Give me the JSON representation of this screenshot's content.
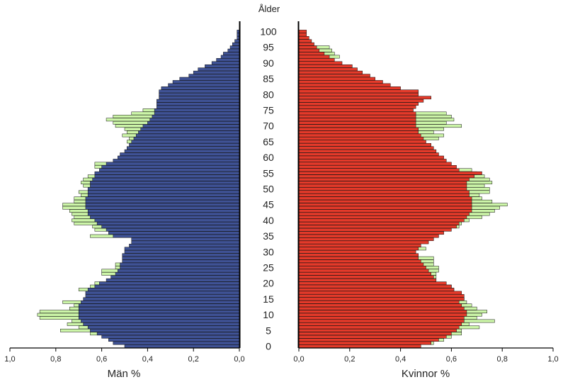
{
  "chart_data": {
    "type": "bar",
    "orientation": "horizontal",
    "subtype": "population-pyramid",
    "age_title": "Ålder",
    "age_range": [
      0,
      100
    ],
    "age_ticks": [
      0,
      5,
      10,
      15,
      20,
      25,
      30,
      35,
      40,
      45,
      50,
      55,
      60,
      65,
      70,
      75,
      80,
      85,
      90,
      95,
      100
    ],
    "xlim": [
      0,
      1.0
    ],
    "x_ticks": [
      0,
      0.2,
      0.4,
      0.6,
      0.8,
      1.0
    ],
    "x_tick_labels": [
      "0,0",
      "0,2",
      "0,4",
      "0,6",
      "0,8",
      "1,0"
    ],
    "men": {
      "xlabel": "Män %",
      "color": "#3f5295",
      "highlight_color": "#ccf5a8",
      "main": [
        0.5,
        0.55,
        0.57,
        0.6,
        0.62,
        0.65,
        0.66,
        0.68,
        0.69,
        0.7,
        0.7,
        0.7,
        0.7,
        0.7,
        0.69,
        0.68,
        0.67,
        0.67,
        0.66,
        0.63,
        0.61,
        0.58,
        0.56,
        0.54,
        0.53,
        0.52,
        0.52,
        0.51,
        0.51,
        0.51,
        0.5,
        0.5,
        0.48,
        0.47,
        0.47,
        0.55,
        0.57,
        0.58,
        0.6,
        0.62,
        0.63,
        0.65,
        0.66,
        0.66,
        0.67,
        0.67,
        0.67,
        0.67,
        0.66,
        0.66,
        0.66,
        0.65,
        0.65,
        0.64,
        0.63,
        0.63,
        0.61,
        0.6,
        0.58,
        0.55,
        0.53,
        0.52,
        0.5,
        0.49,
        0.48,
        0.47,
        0.46,
        0.45,
        0.44,
        0.43,
        0.42,
        0.4,
        0.39,
        0.38,
        0.37,
        0.37,
        0.36,
        0.36,
        0.36,
        0.35,
        0.35,
        0.35,
        0.34,
        0.31,
        0.29,
        0.26,
        0.22,
        0.2,
        0.18,
        0.15,
        0.12,
        0.1,
        0.08,
        0.07,
        0.05,
        0.04,
        0.03,
        0.02,
        0.01,
        0.01,
        0.01
      ],
      "extra": [
        0.0,
        0.0,
        0.0,
        0.0,
        0.03,
        0.13,
        0.04,
        0.07,
        0.04,
        0.17,
        0.18,
        0.17,
        0.04,
        0.02,
        0.08,
        0.0,
        0.0,
        0.0,
        0.04,
        0.02,
        0.02,
        0.0,
        0.0,
        0.06,
        0.07,
        0.02,
        0.02,
        0.0,
        0.0,
        0.0,
        0.0,
        0.0,
        0.0,
        0.0,
        0.0,
        0.1,
        0.0,
        0.05,
        0.04,
        0.1,
        0.1,
        0.07,
        0.07,
        0.08,
        0.1,
        0.1,
        0.05,
        0.05,
        0.03,
        0.04,
        0.0,
        0.03,
        0.04,
        0.04,
        0.03,
        0.0,
        0.0,
        0.03,
        0.05,
        0.0,
        0.0,
        0.0,
        0.0,
        0.0,
        0.0,
        0.02,
        0.02,
        0.06,
        0.05,
        0.07,
        0.12,
        0.15,
        0.19,
        0.17,
        0.1,
        0.05,
        0.0,
        0.0,
        0.0,
        0.0,
        0.0,
        0.0,
        0.0,
        0.0,
        0.0,
        0.0,
        0.0,
        0.0,
        0.0,
        0.0,
        0.0,
        0.0,
        0.0,
        0.0,
        0.0,
        0.0,
        0.0,
        0.0,
        0.0,
        0.0,
        0.0
      ]
    },
    "women": {
      "xlabel": "Kvinnor %",
      "color": "#e43a2a",
      "highlight_color": "#ccf5a8",
      "main": [
        0.48,
        0.52,
        0.55,
        0.58,
        0.6,
        0.62,
        0.63,
        0.64,
        0.65,
        0.65,
        0.66,
        0.66,
        0.65,
        0.64,
        0.63,
        0.62,
        0.63,
        0.62,
        0.6,
        0.58,
        0.56,
        0.54,
        0.53,
        0.52,
        0.51,
        0.5,
        0.49,
        0.48,
        0.47,
        0.47,
        0.46,
        0.47,
        0.48,
        0.51,
        0.53,
        0.55,
        0.57,
        0.6,
        0.62,
        0.63,
        0.65,
        0.66,
        0.67,
        0.68,
        0.68,
        0.68,
        0.68,
        0.68,
        0.67,
        0.67,
        0.66,
        0.66,
        0.66,
        0.65,
        0.65,
        0.66,
        0.63,
        0.62,
        0.6,
        0.58,
        0.57,
        0.55,
        0.54,
        0.53,
        0.52,
        0.5,
        0.49,
        0.48,
        0.47,
        0.47,
        0.46,
        0.46,
        0.46,
        0.46,
        0.46,
        0.45,
        0.44,
        0.44,
        0.43,
        0.42,
        0.41,
        0.4,
        0.4,
        0.36,
        0.33,
        0.3,
        0.28,
        0.25,
        0.23,
        0.21,
        0.17,
        0.14,
        0.12,
        0.1,
        0.08,
        0.07,
        0.06,
        0.05,
        0.04,
        0.03,
        0.03
      ],
      "extra": [
        0.0,
        0.01,
        0.02,
        0.02,
        0.04,
        0.02,
        0.08,
        0.03,
        0.12,
        0.05,
        0.06,
        0.08,
        0.05,
        0.04,
        0.03,
        0.03,
        0.0,
        0.0,
        0.01,
        0.02,
        0.0,
        0.0,
        0.01,
        0.02,
        0.04,
        0.05,
        0.04,
        0.05,
        0.06,
        0.0,
        0.0,
        0.03,
        0.0,
        0.0,
        0.0,
        0.0,
        0.0,
        0.0,
        0.01,
        0.01,
        0.02,
        0.06,
        0.08,
        0.09,
        0.11,
        0.14,
        0.08,
        0.04,
        0.04,
        0.08,
        0.09,
        0.07,
        0.1,
        0.1,
        0.08,
        0.04,
        0.05,
        0.0,
        0.0,
        0.0,
        0.0,
        0.0,
        0.0,
        0.0,
        0.0,
        0.0,
        0.06,
        0.09,
        0.06,
        0.1,
        0.18,
        0.12,
        0.15,
        0.14,
        0.12,
        0.0,
        0.0,
        0.0,
        0.0,
        0.0,
        0.0,
        0.0,
        0.0,
        0.0,
        0.0,
        0.0,
        0.0,
        0.0,
        0.0,
        0.0,
        0.0,
        0.0,
        0.04,
        0.04,
        0.05,
        0.05,
        0.0,
        0.0,
        0.0,
        0.0,
        0.0
      ],
      "red_extra": [
        0.0,
        0.0,
        0.0,
        0.0,
        0.0,
        0.0,
        0.0,
        0.0,
        0.0,
        0.0,
        0.0,
        0.0,
        0.0,
        0.0,
        0.0,
        0.03,
        0.02,
        0.02,
        0.01,
        0.02,
        0.02,
        0.0,
        0.0,
        0.0,
        0.0,
        0.0,
        0.0,
        0.0,
        0.0,
        0.0,
        0.0,
        0.0,
        0.0,
        0.0,
        0.0,
        0.0,
        0.0,
        0.0,
        0.0,
        0.0,
        0.0,
        0.0,
        0.0,
        0.0,
        0.0,
        0.0,
        0.0,
        0.0,
        0.0,
        0.0,
        0.0,
        0.0,
        0.0,
        0.02,
        0.04,
        0.06,
        0.0,
        0.0,
        0.0,
        0.0,
        0.0,
        0.0,
        0.0,
        0.0,
        0.0,
        0.0,
        0.0,
        0.0,
        0.0,
        0.0,
        0.0,
        0.0,
        0.0,
        0.0,
        0.0,
        0.0,
        0.02,
        0.03,
        0.06,
        0.1,
        0.06,
        0.07,
        0.0,
        0.0,
        0.0,
        0.0,
        0.0,
        0.0,
        0.0,
        0.0,
        0.0,
        0.0,
        0.0,
        0.0,
        0.0,
        0.0,
        0.0,
        0.0,
        0.0,
        0.0,
        0.0
      ]
    }
  }
}
